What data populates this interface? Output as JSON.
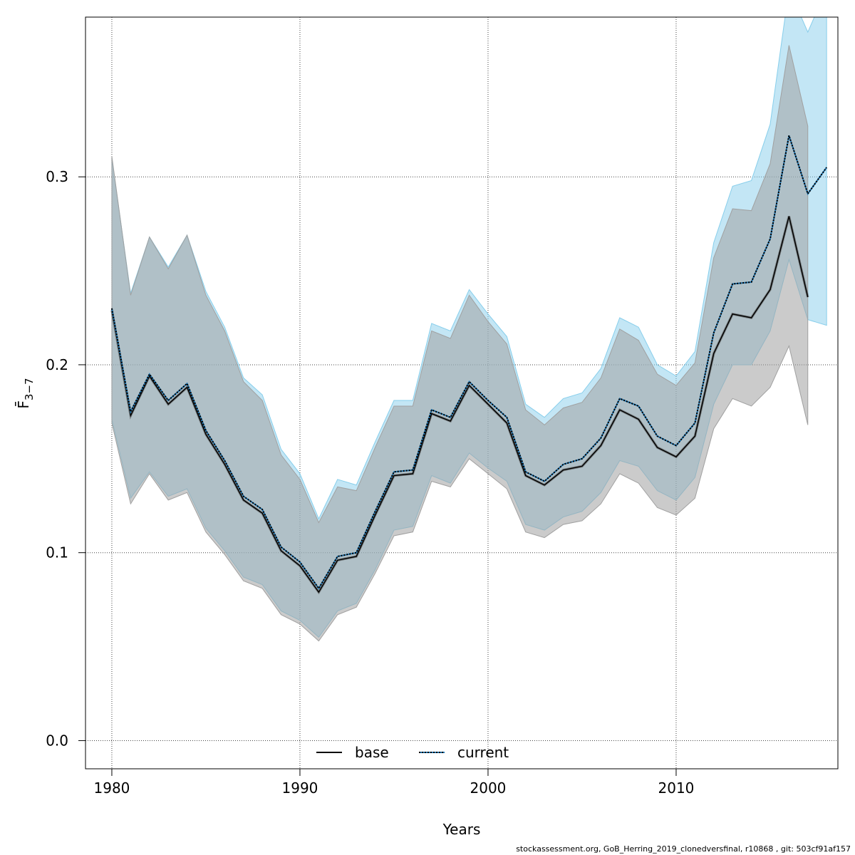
{
  "chart_data": {
    "type": "line",
    "xlabel": "Years",
    "ylabel": "F̄",
    "ylabel_sub": "3−7",
    "xlim": [
      1978.6,
      2018.6
    ],
    "ylim": [
      -0.015,
      0.385
    ],
    "x_ticks": [
      1980,
      1990,
      2000,
      2010
    ],
    "y_ticks": [
      0.0,
      0.1,
      0.2,
      0.3
    ],
    "x_tick_labels": [
      "1980",
      "1990",
      "2000",
      "2010"
    ],
    "y_tick_labels": [
      "0.0",
      "0.1",
      "0.2",
      "0.3"
    ],
    "grid": true,
    "legend_position": "bottom-center",
    "series": [
      {
        "name": "base",
        "line_style": "solid",
        "line_color": "#000000",
        "band_color": "#a0a0a0",
        "x": [
          1980,
          1981,
          1982,
          1983,
          1984,
          1985,
          1986,
          1987,
          1988,
          1989,
          1990,
          1991,
          1992,
          1993,
          1994,
          1995,
          1996,
          1997,
          1998,
          1999,
          2000,
          2001,
          2002,
          2003,
          2004,
          2005,
          2006,
          2007,
          2008,
          2009,
          2010,
          2011,
          2012,
          2013,
          2014,
          2015,
          2016,
          2017
        ],
        "values": [
          0.229,
          0.173,
          0.194,
          0.179,
          0.188,
          0.163,
          0.147,
          0.128,
          0.121,
          0.101,
          0.093,
          0.079,
          0.096,
          0.098,
          0.12,
          0.141,
          0.142,
          0.174,
          0.17,
          0.189,
          0.179,
          0.169,
          0.141,
          0.136,
          0.144,
          0.146,
          0.157,
          0.176,
          0.171,
          0.156,
          0.151,
          0.162,
          0.206,
          0.227,
          0.225,
          0.24,
          0.279,
          0.236
        ],
        "lower": [
          0.169,
          0.126,
          0.142,
          0.128,
          0.132,
          0.111,
          0.099,
          0.085,
          0.081,
          0.067,
          0.062,
          0.053,
          0.067,
          0.071,
          0.089,
          0.109,
          0.111,
          0.138,
          0.135,
          0.15,
          0.142,
          0.134,
          0.111,
          0.108,
          0.115,
          0.117,
          0.126,
          0.142,
          0.137,
          0.124,
          0.12,
          0.129,
          0.166,
          0.182,
          0.178,
          0.188,
          0.21,
          0.168
        ],
        "upper": [
          0.311,
          0.237,
          0.268,
          0.251,
          0.269,
          0.237,
          0.218,
          0.191,
          0.181,
          0.152,
          0.139,
          0.116,
          0.135,
          0.133,
          0.156,
          0.178,
          0.178,
          0.218,
          0.214,
          0.237,
          0.223,
          0.211,
          0.176,
          0.168,
          0.177,
          0.18,
          0.193,
          0.219,
          0.213,
          0.195,
          0.189,
          0.201,
          0.257,
          0.283,
          0.282,
          0.307,
          0.37,
          0.327
        ]
      },
      {
        "name": "current",
        "line_style": "dotted",
        "line_color": "#1f77b4",
        "band_color": "#87ceeb",
        "x": [
          1980,
          1981,
          1982,
          1983,
          1984,
          1985,
          1986,
          1987,
          1988,
          1989,
          1990,
          1991,
          1992,
          1993,
          1994,
          1995,
          1996,
          1997,
          1998,
          1999,
          2000,
          2001,
          2002,
          2003,
          2004,
          2005,
          2006,
          2007,
          2008,
          2009,
          2010,
          2011,
          2012,
          2013,
          2014,
          2015,
          2016,
          2017,
          2018
        ],
        "values": [
          0.23,
          0.175,
          0.195,
          0.181,
          0.19,
          0.165,
          0.149,
          0.13,
          0.123,
          0.103,
          0.095,
          0.081,
          0.098,
          0.1,
          0.122,
          0.143,
          0.144,
          0.176,
          0.172,
          0.191,
          0.181,
          0.172,
          0.143,
          0.138,
          0.147,
          0.15,
          0.161,
          0.182,
          0.178,
          0.162,
          0.157,
          0.169,
          0.217,
          0.243,
          0.244,
          0.267,
          0.322,
          0.291,
          0.305
        ],
        "lower": [
          0.171,
          0.129,
          0.143,
          0.13,
          0.134,
          0.113,
          0.101,
          0.087,
          0.083,
          0.069,
          0.064,
          0.055,
          0.069,
          0.073,
          0.091,
          0.112,
          0.114,
          0.141,
          0.137,
          0.153,
          0.145,
          0.138,
          0.115,
          0.112,
          0.119,
          0.122,
          0.132,
          0.149,
          0.146,
          0.133,
          0.128,
          0.14,
          0.179,
          0.2,
          0.2,
          0.218,
          0.256,
          0.224,
          0.221
        ],
        "upper": [
          0.31,
          0.238,
          0.268,
          0.252,
          0.269,
          0.239,
          0.22,
          0.193,
          0.184,
          0.155,
          0.142,
          0.118,
          0.139,
          0.136,
          0.159,
          0.181,
          0.181,
          0.222,
          0.218,
          0.24,
          0.227,
          0.215,
          0.179,
          0.172,
          0.182,
          0.185,
          0.198,
          0.225,
          0.22,
          0.2,
          0.194,
          0.207,
          0.265,
          0.295,
          0.298,
          0.328,
          0.4,
          0.377,
          0.4
        ]
      }
    ],
    "legend": [
      {
        "label": "base",
        "style": "solid"
      },
      {
        "label": "current",
        "style": "dotted"
      }
    ]
  },
  "footer": {
    "caption": "stockassessment.org, GoB_Herring_2019_clonedversfinal, r10868 , git: 503cf91af157"
  }
}
